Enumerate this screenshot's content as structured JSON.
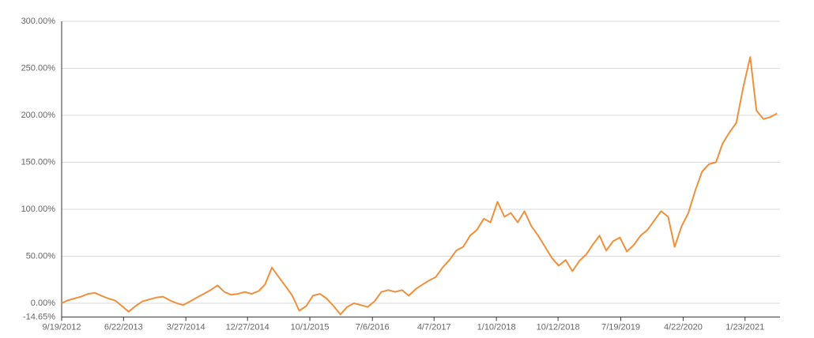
{
  "chart_data": {
    "type": "line",
    "x": [
      "9/19/2012",
      "10/15/2012",
      "11/15/2012",
      "12/15/2012",
      "1/15/2013",
      "2/15/2013",
      "3/15/2013",
      "4/15/2013",
      "5/15/2013",
      "6/15/2013",
      "7/15/2013",
      "8/15/2013",
      "9/15/2013",
      "10/15/2013",
      "11/15/2013",
      "12/15/2013",
      "1/15/2014",
      "2/15/2014",
      "3/15/2014",
      "4/15/2014",
      "5/15/2014",
      "6/15/2014",
      "7/15/2014",
      "8/15/2014",
      "9/15/2014",
      "10/15/2014",
      "11/15/2014",
      "12/15/2014",
      "1/15/2015",
      "2/15/2015",
      "3/15/2015",
      "4/15/2015",
      "5/15/2015",
      "6/15/2015",
      "7/15/2015",
      "8/15/2015",
      "9/15/2015",
      "10/15/2015",
      "11/15/2015",
      "12/15/2015",
      "1/15/2016",
      "2/15/2016",
      "3/15/2016",
      "4/15/2016",
      "5/15/2016",
      "6/15/2016",
      "7/15/2016",
      "8/15/2016",
      "9/15/2016",
      "10/15/2016",
      "11/15/2016",
      "12/15/2016",
      "1/15/2017",
      "2/15/2017",
      "3/15/2017",
      "4/15/2017",
      "5/15/2017",
      "6/15/2017",
      "7/15/2017",
      "8/15/2017",
      "9/15/2017",
      "10/15/2017",
      "11/15/2017",
      "12/15/2017",
      "1/15/2018",
      "2/15/2018",
      "3/15/2018",
      "4/15/2018",
      "5/15/2018",
      "6/15/2018",
      "7/15/2018",
      "8/15/2018",
      "9/15/2018",
      "10/15/2018",
      "11/15/2018",
      "12/15/2018",
      "1/15/2019",
      "2/15/2019",
      "3/15/2019",
      "4/15/2019",
      "5/15/2019",
      "6/15/2019",
      "7/15/2019",
      "8/15/2019",
      "9/15/2019",
      "10/15/2019",
      "11/15/2019",
      "12/15/2019",
      "1/15/2020",
      "2/15/2020",
      "3/15/2020",
      "4/15/2020",
      "5/15/2020",
      "6/15/2020",
      "7/15/2020",
      "8/15/2020",
      "9/15/2020",
      "10/15/2020",
      "11/15/2020",
      "12/15/2020",
      "1/15/2021",
      "2/15/2021",
      "3/15/2021",
      "4/15/2021",
      "5/15/2021",
      "6/15/2021"
    ],
    "series": [
      {
        "color": "#f0903c",
        "values": [
          0,
          3,
          5,
          7,
          10,
          11,
          8,
          5,
          3,
          -3,
          -9,
          -3,
          2,
          4,
          6,
          7,
          3,
          0,
          -2,
          2,
          6,
          10,
          14,
          19,
          12,
          9,
          10,
          12,
          10,
          13,
          20,
          38,
          28,
          18,
          8,
          -8,
          -3,
          8,
          10,
          5,
          -3,
          -12,
          -4,
          0,
          -2,
          -4,
          2,
          12,
          14,
          12,
          14,
          8,
          15,
          20,
          24,
          28,
          38,
          46,
          56,
          60,
          72,
          78,
          90,
          86,
          108,
          92,
          96,
          86,
          98,
          82,
          72,
          60,
          48,
          40,
          46,
          34,
          45,
          52,
          62,
          72,
          56,
          66,
          70,
          55,
          62,
          72,
          78,
          88,
          98,
          92,
          60,
          82,
          96,
          120,
          140,
          148,
          150,
          170,
          182,
          192,
          230,
          262,
          205,
          196,
          198,
          202
        ]
      }
    ],
    "xlim": [
      "9/19/2012",
      "6/28/2021"
    ],
    "xticks": [
      "9/19/2012",
      "6/22/2013",
      "3/27/2014",
      "12/27/2014",
      "10/1/2015",
      "7/6/2016",
      "4/7/2017",
      "1/10/2018",
      "10/12/2018",
      "7/19/2019",
      "4/22/2020",
      "1/23/2021"
    ],
    "ylim": [
      -14.65,
      300
    ],
    "yticks": [
      {
        "value": -14.65,
        "label": "-14.65%"
      },
      {
        "value": 0,
        "label": "0.00%"
      },
      {
        "value": 50,
        "label": "50.00%"
      },
      {
        "value": 100,
        "label": "100.00%"
      },
      {
        "value": 150,
        "label": "150.00%"
      },
      {
        "value": 200,
        "label": "200.00%"
      },
      {
        "value": 250,
        "label": "250.00%"
      },
      {
        "value": 300,
        "label": "300.00%"
      }
    ],
    "grid": true
  }
}
